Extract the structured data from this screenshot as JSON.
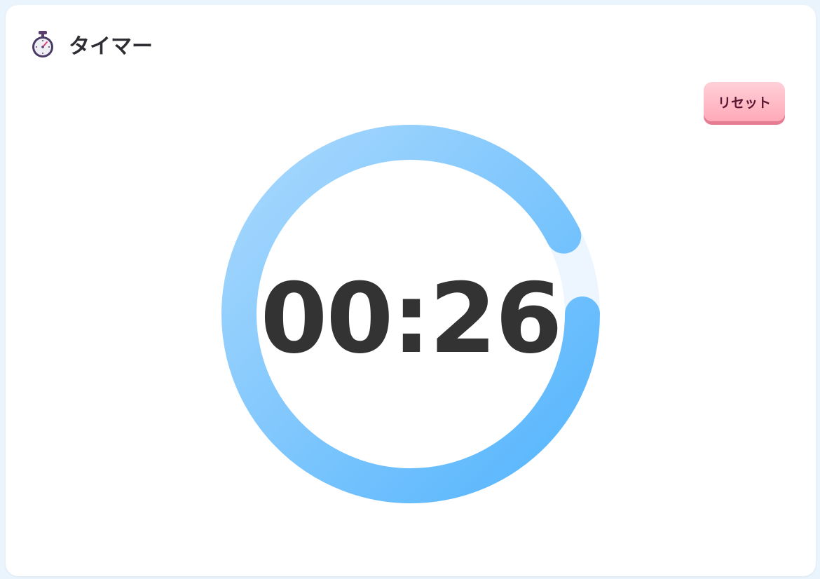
{
  "header": {
    "title": "タイマー",
    "icon": "stopwatch-icon"
  },
  "controls": {
    "reset_label": "リセット"
  },
  "timer": {
    "display": "00:26",
    "progress_fraction": 0.925
  },
  "colors": {
    "ring_start": "#a8d8fd",
    "ring_end": "#55b5fd",
    "ring_track": "#edf5fe",
    "reset_button": "#ffaabb",
    "text": "#333333"
  }
}
